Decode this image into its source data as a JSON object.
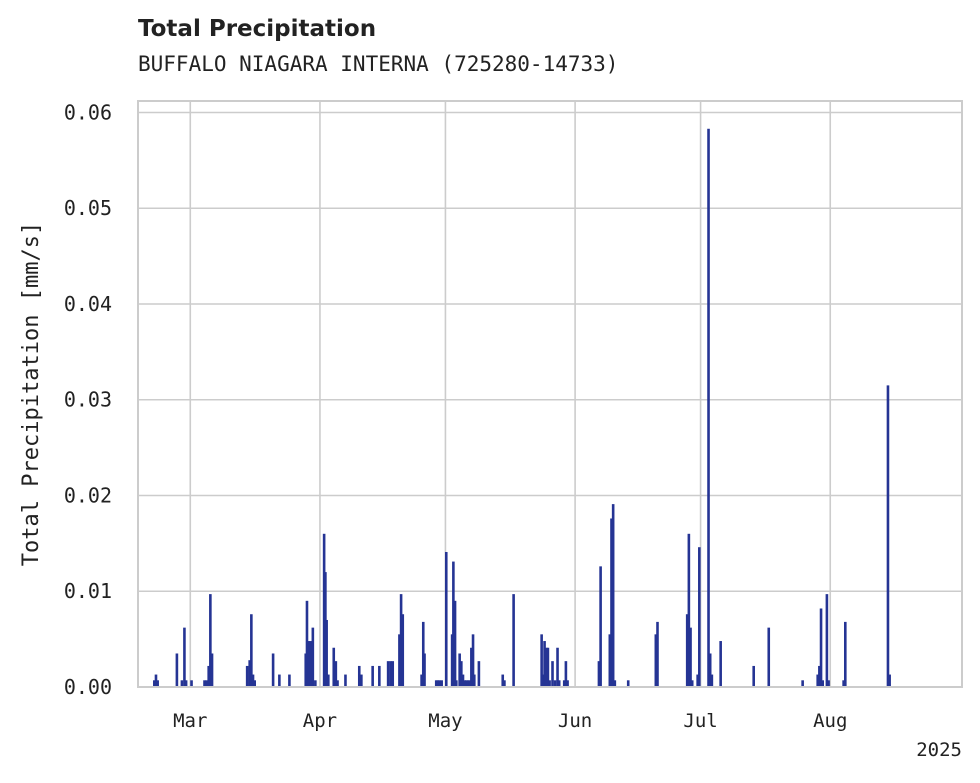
{
  "title": "Total Precipitation",
  "subtitle": "BUFFALO NIAGARA INTERNA (725280-14733)",
  "chart_data": {
    "type": "bar",
    "title": "Total Precipitation",
    "subtitle": "BUFFALO NIAGARA INTERNA (725280-14733)",
    "xlabel": "",
    "ylabel": "Total Precipitation [mm/s]",
    "ylim": [
      0,
      0.0612
    ],
    "yticks": [
      {
        "value": 0.0,
        "label": "0.00"
      },
      {
        "value": 0.01,
        "label": "0.01"
      },
      {
        "value": 0.02,
        "label": "0.02"
      },
      {
        "value": 0.03,
        "label": "0.03"
      },
      {
        "value": 0.04,
        "label": "0.04"
      },
      {
        "value": 0.05,
        "label": "0.05"
      },
      {
        "value": 0.06,
        "label": "0.06"
      }
    ],
    "x_unit": "day of year 2025",
    "xlim": [
      47.5,
      244.5
    ],
    "xticks": [
      {
        "day": 60,
        "label": "Mar"
      },
      {
        "day": 91,
        "label": "Apr"
      },
      {
        "day": 121,
        "label": "May"
      },
      {
        "day": 152,
        "label": "Jun"
      },
      {
        "day": 182,
        "label": "Jul"
      },
      {
        "day": 213,
        "label": "Aug"
      }
    ],
    "year_label": "2025",
    "grid": true,
    "bar_color": "#253494",
    "series": [
      {
        "name": "Total Precipitation",
        "points": [
          [
            51.4,
            0.0007
          ],
          [
            51.8,
            0.0013
          ],
          [
            52.2,
            0.0007
          ],
          [
            56.8,
            0.0035
          ],
          [
            58.0,
            0.0007
          ],
          [
            58.6,
            0.0062
          ],
          [
            59.0,
            0.0007
          ],
          [
            60.3,
            0.0007
          ],
          [
            63.4,
            0.0007
          ],
          [
            63.9,
            0.0007
          ],
          [
            64.4,
            0.0022
          ],
          [
            64.8,
            0.0097
          ],
          [
            65.2,
            0.0035
          ],
          [
            73.6,
            0.0022
          ],
          [
            74.2,
            0.0028
          ],
          [
            74.6,
            0.0076
          ],
          [
            75.0,
            0.0013
          ],
          [
            75.4,
            0.0007
          ],
          [
            79.8,
            0.0035
          ],
          [
            81.3,
            0.0013
          ],
          [
            83.7,
            0.0013
          ],
          [
            87.6,
            0.0035
          ],
          [
            87.9,
            0.009
          ],
          [
            88.3,
            0.0048
          ],
          [
            88.8,
            0.0048
          ],
          [
            89.3,
            0.0062
          ],
          [
            89.9,
            0.0007
          ],
          [
            92.0,
            0.016
          ],
          [
            92.3,
            0.012
          ],
          [
            92.6,
            0.007
          ],
          [
            93.0,
            0.0013
          ],
          [
            94.3,
            0.0041
          ],
          [
            94.8,
            0.0027
          ],
          [
            95.2,
            0.0007
          ],
          [
            97.1,
            0.0013
          ],
          [
            100.4,
            0.0022
          ],
          [
            100.9,
            0.0013
          ],
          [
            103.6,
            0.0022
          ],
          [
            105.2,
            0.0022
          ],
          [
            107.3,
            0.0027
          ],
          [
            107.9,
            0.0027
          ],
          [
            108.4,
            0.0027
          ],
          [
            110.0,
            0.0055
          ],
          [
            110.4,
            0.0097
          ],
          [
            110.8,
            0.0076
          ],
          [
            115.3,
            0.0013
          ],
          [
            115.7,
            0.0068
          ],
          [
            116.0,
            0.0035
          ],
          [
            118.8,
            0.0007
          ],
          [
            119.2,
            0.0007
          ],
          [
            119.6,
            0.0007
          ],
          [
            120.1,
            0.0007
          ],
          [
            121.2,
            0.0141
          ],
          [
            122.6,
            0.0055
          ],
          [
            122.9,
            0.0131
          ],
          [
            123.3,
            0.009
          ],
          [
            123.6,
            0.0007
          ],
          [
            124.4,
            0.0035
          ],
          [
            124.8,
            0.0027
          ],
          [
            125.2,
            0.0013
          ],
          [
            125.6,
            0.0007
          ],
          [
            126.0,
            0.0007
          ],
          [
            126.4,
            0.0007
          ],
          [
            126.8,
            0.0007
          ],
          [
            127.2,
            0.0041
          ],
          [
            127.6,
            0.0055
          ],
          [
            127.9,
            0.0013
          ],
          [
            129.0,
            0.0027
          ],
          [
            134.7,
            0.0013
          ],
          [
            135.1,
            0.0007
          ],
          [
            137.3,
            0.0097
          ],
          [
            144.0,
            0.0055
          ],
          [
            144.3,
            0.0013
          ],
          [
            144.7,
            0.0048
          ],
          [
            145.1,
            0.0041
          ],
          [
            145.5,
            0.0041
          ],
          [
            145.9,
            0.0007
          ],
          [
            146.6,
            0.0027
          ],
          [
            147.2,
            0.0007
          ],
          [
            147.8,
            0.0041
          ],
          [
            148.2,
            0.0007
          ],
          [
            149.4,
            0.0007
          ],
          [
            149.8,
            0.0027
          ],
          [
            150.2,
            0.0007
          ],
          [
            157.7,
            0.0027
          ],
          [
            158.1,
            0.0126
          ],
          [
            160.3,
            0.0055
          ],
          [
            160.7,
            0.0176
          ],
          [
            161.1,
            0.0191
          ],
          [
            161.5,
            0.0007
          ],
          [
            164.7,
            0.0007
          ],
          [
            171.3,
            0.0055
          ],
          [
            171.7,
            0.0068
          ],
          [
            178.8,
            0.0076
          ],
          [
            179.2,
            0.016
          ],
          [
            179.6,
            0.0062
          ],
          [
            180.0,
            0.0007
          ],
          [
            181.3,
            0.0013
          ],
          [
            181.7,
            0.0146
          ],
          [
            183.9,
            0.0583
          ],
          [
            184.3,
            0.0035
          ],
          [
            184.7,
            0.0013
          ],
          [
            186.8,
            0.0048
          ],
          [
            194.7,
            0.0022
          ],
          [
            198.3,
            0.0062
          ],
          [
            206.4,
            0.0007
          ],
          [
            210.0,
            0.0013
          ],
          [
            210.4,
            0.0022
          ],
          [
            210.8,
            0.0082
          ],
          [
            211.2,
            0.0007
          ],
          [
            212.2,
            0.0097
          ],
          [
            212.6,
            0.0007
          ],
          [
            216.2,
            0.0007
          ],
          [
            216.6,
            0.0068
          ],
          [
            226.8,
            0.0315
          ],
          [
            227.2,
            0.0013
          ]
        ]
      }
    ]
  }
}
